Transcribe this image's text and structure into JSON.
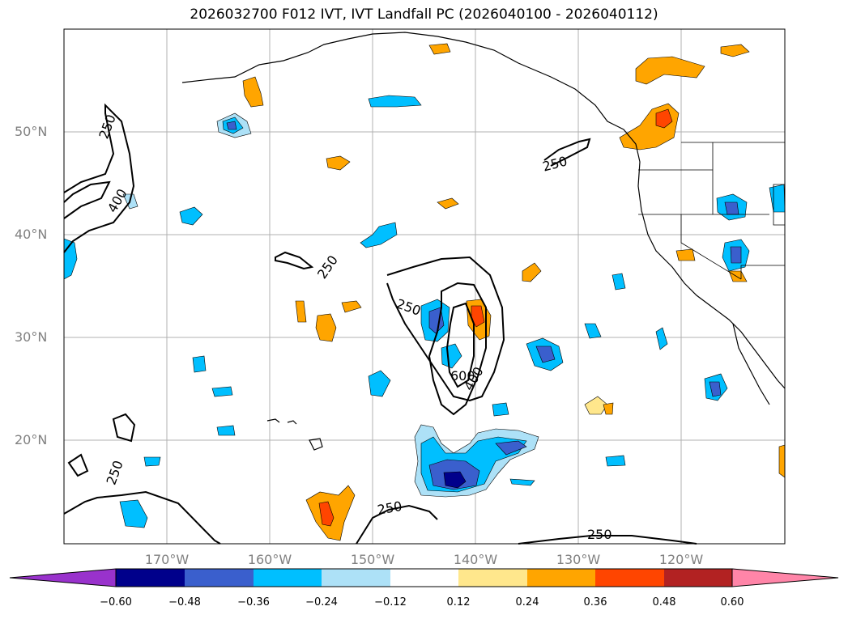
{
  "title": "2026032700 F012 IVT, IVT Landfall PC (2026040100 - 2026040112)",
  "map": {
    "projection": "PlateCarree",
    "lon_range": [
      -180,
      -110
    ],
    "lat_range": [
      10,
      60
    ],
    "lat_labels": [
      "50°N",
      "40°N",
      "30°N",
      "20°N"
    ],
    "lon_labels": [
      "170°W",
      "160°W",
      "150°W",
      "140°W",
      "130°W",
      "120°W"
    ],
    "contour_labels": [
      "250",
      "400",
      "250",
      "250",
      "250",
      "400",
      "600",
      "250",
      "250",
      "250"
    ],
    "fill_colors": {
      "neg_060": "#9932CC",
      "neg_048": "#00008B",
      "neg_036": "#3A5FCD",
      "neg_024": "#00BFFF",
      "neg_012": "#ADE1F7",
      "pos_012": "#FFE78C",
      "pos_024": "#FFA500",
      "pos_036": "#FF4500",
      "pos_048": "#B22222",
      "pos_060": "#FF85A8"
    }
  },
  "colorbar": {
    "ticks": [
      "−0.60",
      "−0.48",
      "−0.36",
      "−0.24",
      "−0.12",
      "0.12",
      "0.24",
      "0.36",
      "0.48",
      "0.60"
    ],
    "colors": [
      "#9932CC",
      "#00008B",
      "#3A5FCD",
      "#00BFFF",
      "#ADE1F7",
      "#FFFFFF",
      "#FFE78C",
      "#FFA500",
      "#FF4500",
      "#B22222",
      "#FF85A8"
    ]
  }
}
